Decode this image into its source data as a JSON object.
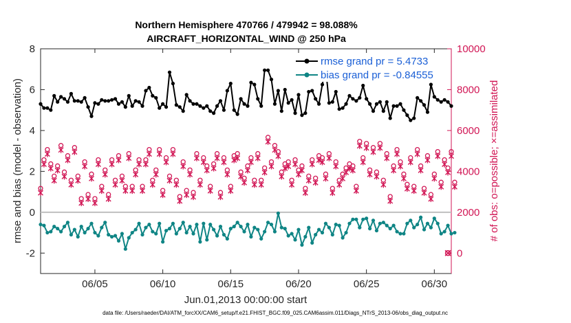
{
  "chart_data": {
    "type": "line",
    "title_line1": "Northern Hemisphere 470766 / 479942 = 98.088%",
    "title_line2": "AIRCRAFT_HORIZONTAL_WIND @ 250 hPa",
    "ylabel_left": "rmse and bias (model - observation)",
    "ylabel_right": "# of obs: o=possible; ×=assimilated",
    "xlabel": "Jun.01,2013 00:00:00 start",
    "footer": "data file: /Users/raeder/DAI/ATM_forcXX/CAM6_setup/f.e21.FHIST_BGC.f09_025.CAM6assim.011/Diags_NTrS_2013-06/obs_diag_output.nc",
    "xlim": [
      1.0,
      31.25
    ],
    "ylim_left": [
      -3,
      8
    ],
    "ylim_right": [
      -1000,
      10000
    ],
    "xticks": [
      5,
      10,
      15,
      20,
      25,
      30
    ],
    "xtick_labels": [
      "06/05",
      "06/10",
      "06/15",
      "06/20",
      "06/25",
      "06/30"
    ],
    "yticks_left": [
      -2,
      0,
      2,
      4,
      6,
      8
    ],
    "yticks_right": [
      0,
      2000,
      4000,
      6000,
      8000,
      10000
    ],
    "x_start": 1.0,
    "x_step": 0.25,
    "legend": [
      "rmse grand pr = 5.4733",
      "bias grand pr = -0.84555"
    ],
    "colors": {
      "rmse": "#000000",
      "bias": "#0f8585",
      "obs": "#d11554",
      "zero": "#bfbfbf"
    },
    "series": [
      {
        "name": "rmse",
        "values": [
          5.3,
          5.1,
          5.1,
          5.0,
          5.7,
          5.4,
          5.65,
          5.55,
          5.4,
          5.8,
          5.45,
          5.45,
          5.4,
          5.6,
          5.15,
          4.7,
          5.35,
          5.3,
          5.5,
          5.45,
          5.45,
          5.5,
          5.55,
          5.3,
          5.4,
          5.15,
          5.7,
          5.2,
          5.45,
          5.4,
          5.2,
          5.95,
          6.1,
          5.7,
          5.6,
          5.1,
          5.3,
          5.15,
          6.85,
          6.3,
          5.25,
          5.15,
          4.95,
          5.75,
          5.45,
          5.3,
          5.3,
          5.2,
          5.1,
          5.2,
          4.95,
          4.85,
          5.2,
          5.45,
          5.0,
          5.95,
          6.3,
          5.0,
          4.8,
          5.55,
          5.3,
          5.2,
          6.35,
          6.25,
          5.55,
          5.2,
          6.95,
          6.95,
          6.5,
          5.3,
          5.95,
          4.95,
          6.0,
          5.35,
          5.5,
          4.85,
          5.75,
          4.75,
          4.85,
          5.9,
          5.95,
          5.55,
          5.3,
          6.25,
          7.05,
          5.35,
          5.4,
          5.9,
          5.05,
          5.1,
          5.3,
          5.7,
          5.55,
          5.45,
          5.6,
          6.2,
          5.55,
          5.3,
          4.95,
          5.3,
          5.4,
          4.95,
          5.4,
          4.6,
          5.2,
          5.2,
          5.3,
          5.0,
          4.75,
          4.5,
          4.6,
          5.6,
          5.45,
          5.25,
          4.9,
          6.25,
          5.65,
          5.5,
          5.4,
          5.5,
          5.4,
          5.2
        ]
      },
      {
        "name": "bias",
        "values": [
          -0.6,
          -0.65,
          -1.0,
          -0.95,
          -0.7,
          -0.8,
          -0.95,
          -0.7,
          -0.5,
          -1.1,
          -0.85,
          -1.2,
          -0.7,
          -1.0,
          -0.8,
          -0.55,
          -1.0,
          -1.15,
          -0.75,
          -0.5,
          -1.1,
          -1.2,
          -1.15,
          -1.4,
          -1.05,
          -1.8,
          -1.25,
          -1.0,
          -0.85,
          -0.55,
          -1.1,
          -0.75,
          -0.6,
          -0.95,
          -1.05,
          -0.55,
          -1.45,
          -0.9,
          -0.8,
          -0.55,
          -1.05,
          -0.8,
          -0.5,
          -1.0,
          -0.7,
          -1.05,
          -0.6,
          -1.45,
          -0.55,
          -1.35,
          -0.6,
          -0.85,
          -1.15,
          -0.7,
          -1.1,
          -1.3,
          -0.8,
          -0.7,
          -0.5,
          -0.7,
          -0.95,
          -0.6,
          -1.2,
          -0.75,
          -0.85,
          -1.3,
          -0.95,
          -0.5,
          -0.6,
          -0.95,
          -0.05,
          -0.75,
          -0.8,
          -1.15,
          -1.05,
          -1.35,
          -0.85,
          -1.6,
          -1.2,
          -0.75,
          -1.5,
          -1.1,
          -0.85,
          -1.0,
          -0.55,
          -0.75,
          -1.1,
          -0.6,
          -0.65,
          -1.25,
          -1.0,
          -0.55,
          -0.35,
          -0.35,
          -0.75,
          -0.35,
          -0.3,
          -0.8,
          -0.4,
          -0.9,
          -0.55,
          -0.5,
          -0.65,
          -0.8,
          -0.65,
          -0.95,
          -1.05,
          -1.05,
          -0.55,
          -0.4,
          -0.75,
          -0.6,
          -0.25,
          -0.85,
          -0.55,
          -0.75,
          -0.3,
          -0.55,
          -1.05,
          -0.95,
          -0.65,
          -1.05,
          -1.0
        ]
      },
      {
        "name": "obs_count",
        "values": [
          3100,
          4500,
          5000,
          4300,
          3700,
          4200,
          5200,
          3900,
          4700,
          3500,
          5100,
          3700,
          2600,
          4400,
          2800,
          3800,
          2600,
          4500,
          3200,
          4000,
          2800,
          4500,
          3500,
          4700,
          3700,
          3200,
          4800,
          3200,
          4000,
          4500,
          3200,
          4500,
          5000,
          3500,
          4000,
          5000,
          3000,
          4600,
          3700,
          5000,
          3500,
          2700,
          4400,
          3000,
          4000,
          2900,
          4800,
          3500,
          4600,
          4200,
          3200,
          4300,
          4800,
          2900,
          4600,
          4000,
          3200,
          4700,
          4800,
          3900,
          3600,
          4200,
          4600,
          3500,
          4800,
          3500,
          4100,
          5600,
          4400,
          5200,
          4900,
          3900,
          4300,
          4400,
          3500,
          4500,
          4000,
          4200,
          3100,
          3700,
          4500,
          3600,
          4700,
          4600,
          3800,
          4800,
          3100,
          4400,
          3500,
          3800,
          4100,
          4300,
          4200,
          3200,
          5400,
          4600,
          5300,
          4000,
          5100,
          3900,
          5300,
          3500,
          4800,
          2700,
          4200,
          5000,
          4400,
          3800,
          3300,
          4600,
          3200,
          5000,
          4200,
          3100,
          4700,
          2800,
          3800,
          4900,
          3400,
          4500,
          4100,
          4900,
          3400
        ]
      }
    ],
    "extra_point": {
      "x": 31.0,
      "y": 0
    }
  }
}
